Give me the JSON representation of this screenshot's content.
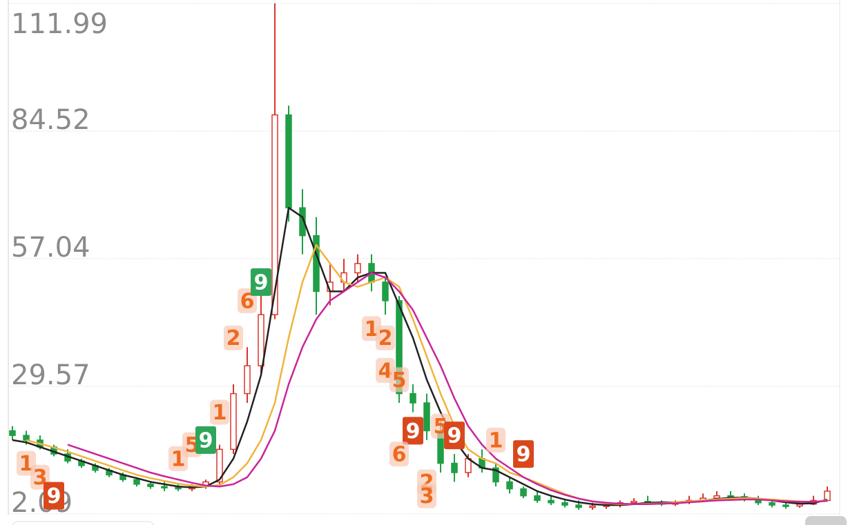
{
  "chart_data": {
    "type": "candlestick",
    "ylim": [
      2.09,
      111.99
    ],
    "yticks": [
      2.09,
      29.57,
      57.04,
      84.52,
      111.99
    ],
    "grid": true,
    "up_color": "#d9352b",
    "down_color": "#1f9e45",
    "open": [
      20,
      19,
      18,
      16.5,
      15,
      13.5,
      12.5,
      11.5,
      10.5,
      9.5,
      8.5,
      8,
      7.8,
      7.5,
      8,
      9,
      16,
      28,
      34,
      45,
      88,
      68,
      62,
      50,
      52,
      54,
      56,
      52,
      48,
      28,
      26,
      20,
      13,
      11,
      14,
      12,
      9,
      7.5,
      6,
      5,
      4.5,
      4,
      3.5,
      3.8,
      4,
      4.5,
      4.8,
      4.5,
      4.2,
      4.6,
      5,
      5.5,
      6,
      5.8,
      5.2,
      4.5,
      4,
      3.8,
      4.2,
      5
    ],
    "high": [
      21,
      20,
      19,
      17,
      16,
      14,
      13,
      12,
      11,
      10,
      9,
      9,
      8.5,
      8.5,
      9.5,
      17,
      30,
      38,
      50,
      112,
      90,
      72,
      66,
      56,
      57,
      58,
      58,
      53,
      49,
      30,
      28,
      22,
      15,
      15,
      16,
      13,
      10,
      8,
      7,
      6,
      5,
      5,
      4.5,
      4.5,
      5,
      5.5,
      6,
      5,
      5,
      6,
      6.5,
      7,
      7,
      6.5,
      6,
      5,
      4.5,
      5,
      6,
      8
    ],
    "low": [
      18,
      17,
      16,
      14.5,
      13,
      12,
      11,
      10,
      9,
      8,
      7.5,
      7,
      7,
      7,
      7.5,
      8.5,
      15,
      26,
      32,
      44,
      65,
      58,
      45,
      47,
      50,
      52,
      50,
      45,
      26,
      24,
      18,
      11,
      9,
      10,
      11,
      8,
      6.5,
      5.5,
      4.5,
      4,
      3.5,
      3,
      3,
      3.2,
      3.5,
      4,
      4,
      3.8,
      3.8,
      4.2,
      4.6,
      5,
      5.2,
      4.8,
      4,
      3.5,
      3.2,
      3.4,
      4,
      4.8
    ],
    "close": [
      19,
      18,
      16.5,
      15,
      13.5,
      12.5,
      11.5,
      10.5,
      9.5,
      8.5,
      8,
      7.8,
      7.5,
      8,
      9,
      16,
      28,
      34,
      45,
      88,
      68,
      62,
      50,
      52,
      54,
      56,
      52,
      48,
      28,
      26,
      20,
      13,
      11,
      14,
      12,
      9,
      7.5,
      6,
      5,
      4.5,
      4,
      3.5,
      3.8,
      4,
      4.5,
      4.8,
      4.5,
      4.2,
      4.6,
      5,
      5.5,
      6,
      5.8,
      5.2,
      4.5,
      4,
      3.8,
      4.2,
      5,
      7
    ],
    "series": [
      {
        "color": "#222222",
        "values": [
          18,
          17.5,
          16.5,
          15.5,
          14.5,
          13.5,
          12.5,
          11.5,
          10.5,
          9.8,
          9,
          8.5,
          8,
          7.8,
          8,
          9.5,
          14,
          22,
          32,
          50,
          68,
          66,
          58,
          50,
          50,
          53,
          54,
          54,
          47,
          40,
          31,
          24,
          18,
          14,
          12,
          11.5,
          10,
          8.5,
          7,
          6,
          5.2,
          4.6,
          4.2,
          4,
          4,
          4.2,
          4.5,
          4.6,
          4.6,
          4.8,
          5,
          5.3,
          5.6,
          5.6,
          5.4,
          5,
          4.6,
          4.3,
          4.4,
          5.2
        ]
      },
      {
        "color": "#f0b43c",
        "values": [
          null,
          18,
          17.2,
          16.4,
          15.5,
          14.5,
          13.5,
          12.5,
          11.5,
          10.5,
          9.8,
          9.2,
          8.6,
          8.2,
          8,
          8.3,
          10,
          13,
          18,
          26,
          40,
          52,
          60,
          56,
          52,
          51,
          52,
          53,
          51,
          44,
          36,
          28,
          21,
          16,
          14,
          13,
          11,
          10,
          8.8,
          7.6,
          6.4,
          5.4,
          4.8,
          4.4,
          4.2,
          4.2,
          4.3,
          4.4,
          4.6,
          4.8,
          5,
          5.2,
          5.4,
          5.5,
          5.4,
          5.2,
          5,
          4.8,
          4.7,
          5
        ]
      },
      {
        "color": "#c8259a",
        "values": [
          null,
          null,
          null,
          null,
          17,
          16,
          15,
          14,
          13,
          12,
          11,
          10.2,
          9.5,
          8.8,
          8.2,
          8,
          8.5,
          10,
          14,
          20,
          30,
          38,
          44,
          48,
          50,
          52,
          54,
          53,
          50,
          46,
          40,
          34,
          27,
          21,
          17,
          14,
          12,
          10,
          8.5,
          7.2,
          6.2,
          5.4,
          4.8,
          4.5,
          4.3,
          4.2,
          4.2,
          4.3,
          4.4,
          4.6,
          4.8,
          5,
          5.1,
          5.2,
          5.2,
          5,
          4.8,
          4.7,
          4.7,
          4.9
        ]
      }
    ],
    "annotations": [
      {
        "text": "1",
        "at": 1,
        "price": 13,
        "kind": "count"
      },
      {
        "text": "3",
        "at": 2,
        "price": 10,
        "kind": "count"
      },
      {
        "text": "9",
        "at": 3,
        "price": 6,
        "kind": "sell"
      },
      {
        "text": "1",
        "at": 12,
        "price": 14,
        "kind": "count"
      },
      {
        "text": "5",
        "at": 13,
        "price": 17,
        "kind": "count"
      },
      {
        "text": "9",
        "at": 14,
        "price": 18,
        "kind": "buy"
      },
      {
        "text": "1",
        "at": 15,
        "price": 24,
        "kind": "count"
      },
      {
        "text": "2",
        "at": 16,
        "price": 40,
        "kind": "count"
      },
      {
        "text": "6",
        "at": 17,
        "price": 48,
        "kind": "count"
      },
      {
        "text": "9",
        "at": 18,
        "price": 52,
        "kind": "buy"
      },
      {
        "text": "1",
        "at": 26,
        "price": 42,
        "kind": "count"
      },
      {
        "text": "2",
        "at": 27,
        "price": 40,
        "kind": "count"
      },
      {
        "text": "4",
        "at": 27,
        "price": 33,
        "kind": "count"
      },
      {
        "text": "5",
        "at": 28,
        "price": 31,
        "kind": "count"
      },
      {
        "text": "9",
        "at": 29,
        "price": 20,
        "kind": "sell"
      },
      {
        "text": "6",
        "at": 28,
        "price": 15,
        "kind": "count"
      },
      {
        "text": "2",
        "at": 30,
        "price": 9,
        "kind": "count"
      },
      {
        "text": "3",
        "at": 30,
        "price": 6,
        "kind": "count"
      },
      {
        "text": "5",
        "at": 31,
        "price": 21,
        "kind": "count"
      },
      {
        "text": "9",
        "at": 32,
        "price": 19,
        "kind": "sell"
      },
      {
        "text": "1",
        "at": 35,
        "price": 18,
        "kind": "count"
      },
      {
        "text": "9",
        "at": 37,
        "price": 15,
        "kind": "sell"
      }
    ]
  }
}
